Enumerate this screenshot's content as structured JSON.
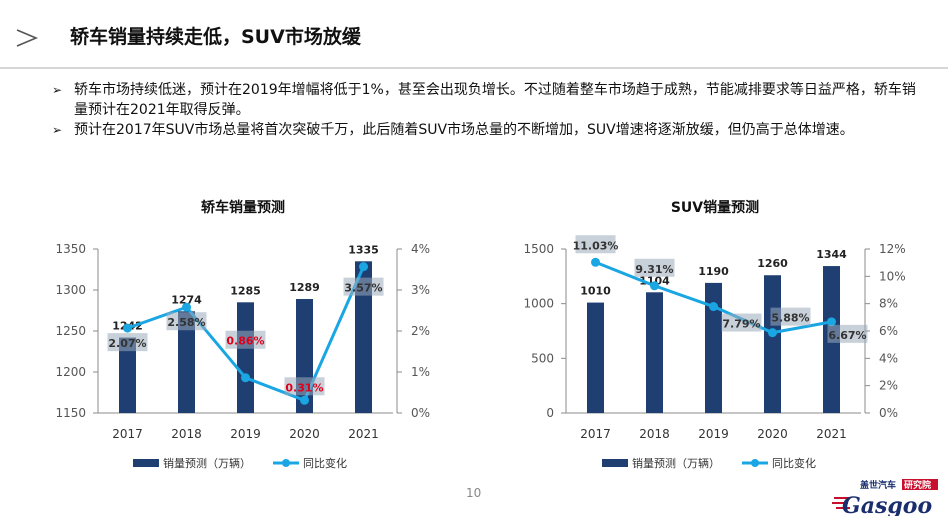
{
  "header": {
    "title": "轿车销量持续走低，SUV市场放缓"
  },
  "bullets": [
    "轿车市场持续低迷，预计在2019年增幅将低于1%，甚至会出现负增长。不过随着整车市场趋于成熟，节能减排要求等日益严格，轿车销量预计在2021年取得反弹。",
    "预计在2017年SUV市场总量将首次突破千万，此后随着SUV市场总量的不断增加，SUV增速将逐渐放缓，但仍高于总体增速。"
  ],
  "page_number": "10",
  "logo": {
    "brand": "Gasgoo",
    "cn_text": "盖世汽车",
    "cn_badge": "研究院"
  },
  "colors": {
    "bar": "#1f3f73",
    "line": "#19a6e3",
    "highlight": "#e0001b",
    "axis": "#8b8b8b",
    "label_bg": "#9aa9ba"
  },
  "chart_data": [
    {
      "type": "bar",
      "title": "轿车销量预测",
      "categories": [
        "2017",
        "2018",
        "2019",
        "2020",
        "2021"
      ],
      "series": [
        {
          "name": "销量预测（万辆）",
          "type": "bar",
          "axis": "left",
          "values": [
            1242,
            1274,
            1285,
            1289,
            1335
          ],
          "labels": [
            "1242",
            "1274",
            "1285",
            "1289",
            "1335"
          ]
        },
        {
          "name": "同比变化",
          "type": "line",
          "axis": "right",
          "values": [
            2.07,
            2.58,
            0.86,
            0.31,
            3.57
          ],
          "labels": [
            "2.07%",
            "2.58%",
            "0.86%",
            "0.31%",
            "3.57%"
          ],
          "highlighted": [
            false,
            false,
            true,
            true,
            false
          ]
        }
      ],
      "y_left": {
        "min": 1150,
        "max": 1350,
        "ticks": [
          1150,
          1200,
          1250,
          1300,
          1350
        ],
        "tick_labels": [
          "1150",
          "1200",
          "1250",
          "1300",
          "1350"
        ]
      },
      "y_right": {
        "min": 0,
        "max": 4,
        "ticks": [
          0,
          1,
          2,
          3,
          4
        ],
        "tick_labels": [
          "0%",
          "1%",
          "2%",
          "3%",
          "4%"
        ]
      },
      "legend": "bottom",
      "grid": false
    },
    {
      "type": "bar",
      "title": "SUV销量预测",
      "categories": [
        "2017",
        "2018",
        "2019",
        "2020",
        "2021"
      ],
      "series": [
        {
          "name": "销量预测（万辆）",
          "type": "bar",
          "axis": "left",
          "values": [
            1010,
            1104,
            1190,
            1260,
            1344
          ],
          "labels": [
            "1010",
            "1104",
            "1190",
            "1260",
            "1344"
          ]
        },
        {
          "name": "同比变化",
          "type": "line",
          "axis": "right",
          "values": [
            11.03,
            9.31,
            7.79,
            5.88,
            6.67
          ],
          "labels": [
            "11.03%",
            "9.31%",
            "7.79%",
            "5.88%",
            "6.67%"
          ],
          "highlighted": [
            false,
            false,
            false,
            false,
            false
          ]
        }
      ],
      "y_left": {
        "min": 0,
        "max": 1500,
        "ticks": [
          0,
          500,
          1000,
          1500
        ],
        "tick_labels": [
          "0",
          "500",
          "1000",
          "1500"
        ]
      },
      "y_right": {
        "min": 0,
        "max": 12,
        "ticks": [
          0,
          2,
          4,
          6,
          8,
          10,
          12
        ],
        "tick_labels": [
          "0%",
          "2%",
          "4%",
          "6%",
          "8%",
          "10%",
          "12%"
        ]
      },
      "legend": "bottom",
      "grid": false
    }
  ]
}
